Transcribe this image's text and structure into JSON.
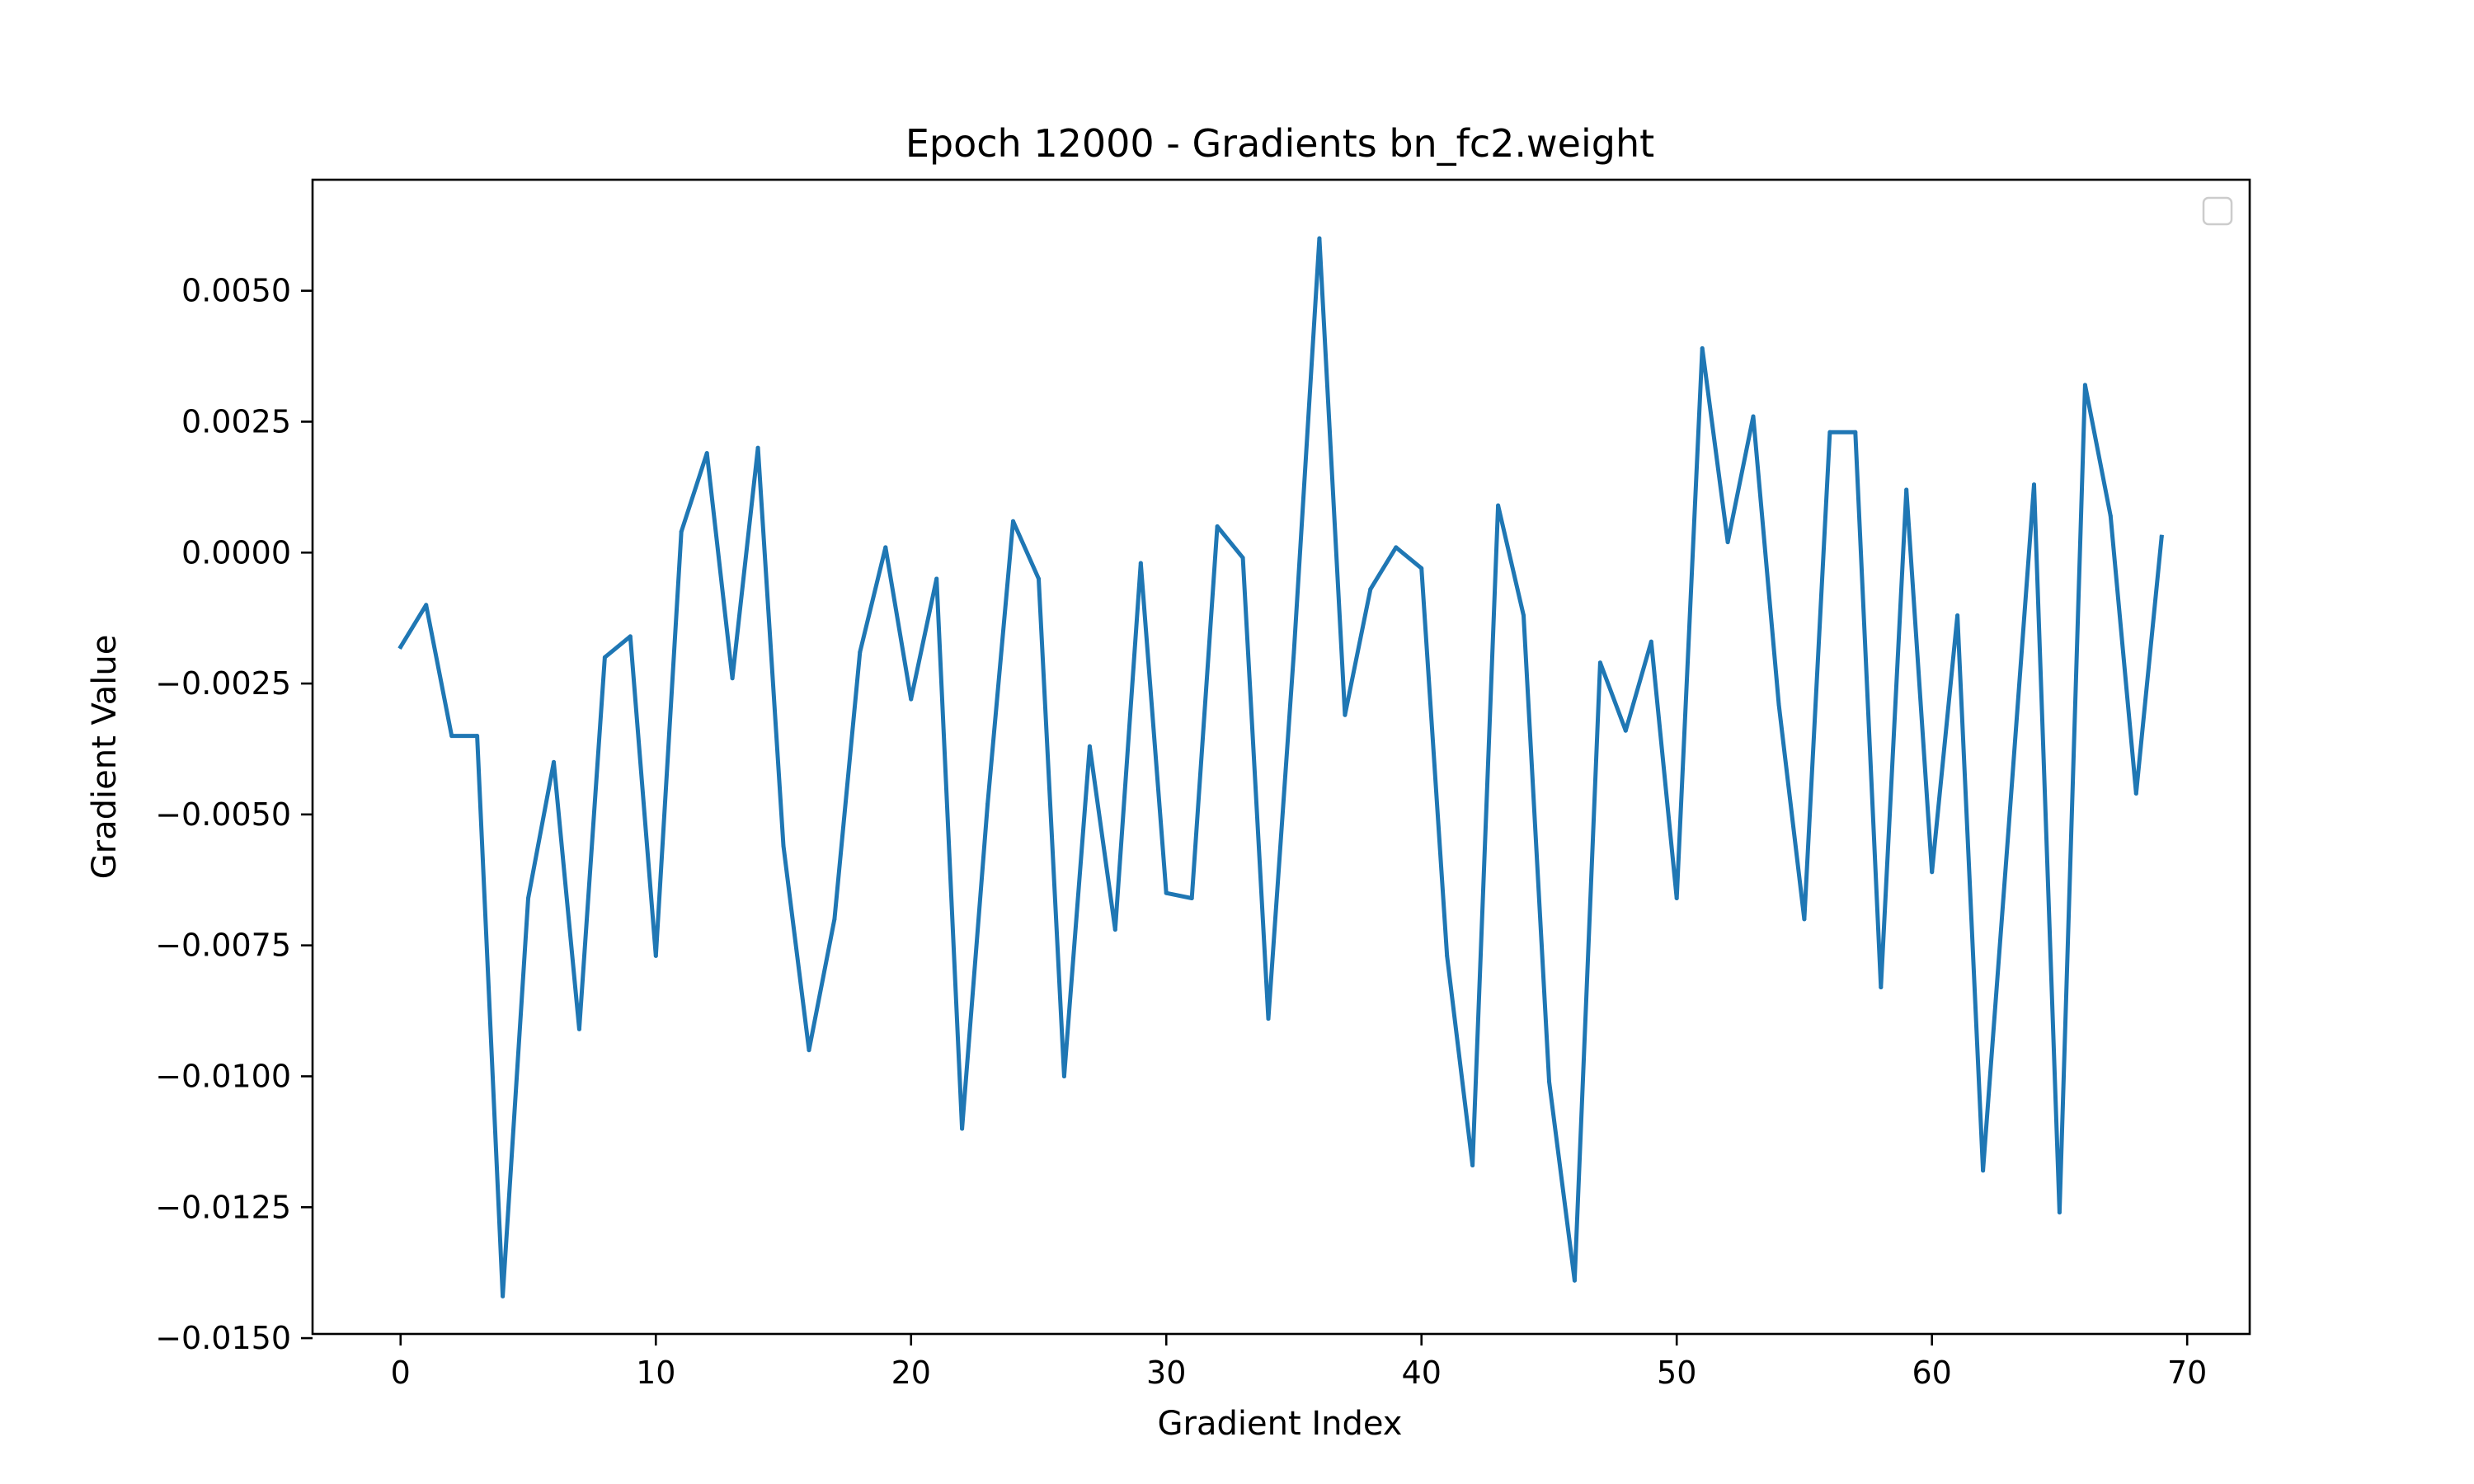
{
  "chart_data": {
    "type": "line",
    "title": "Epoch 12000 - Gradients bn_fc2.weight",
    "xlabel": "Gradient Index",
    "ylabel": "Gradient Value",
    "xlim": [
      -3.45,
      72.45
    ],
    "ylim": [
      -0.01492,
      0.00712
    ],
    "x_ticks": [
      0,
      10,
      20,
      30,
      40,
      50,
      60,
      70
    ],
    "x_tick_labels": [
      "0",
      "10",
      "20",
      "30",
      "40",
      "50",
      "60",
      "70"
    ],
    "y_ticks": [
      0.005,
      0.0025,
      0.0,
      -0.0025,
      -0.005,
      -0.0075,
      -0.01,
      -0.0125,
      -0.015
    ],
    "y_tick_labels": [
      "0.0050",
      "0.0025",
      "0.0000",
      "−0.0025",
      "−0.0050",
      "−0.0075",
      "−0.0100",
      "−0.0125",
      "−0.0150"
    ],
    "grid": false,
    "legend": {
      "placement": "top-right",
      "entries": []
    },
    "series": [
      {
        "color": "#1f77b4",
        "x": [
          0,
          1,
          2,
          3,
          4,
          5,
          6,
          7,
          8,
          9,
          10,
          11,
          12,
          13,
          14,
          15,
          16,
          17,
          18,
          19,
          20,
          21,
          22,
          23,
          24,
          25,
          26,
          27,
          28,
          29,
          30,
          31,
          32,
          33,
          34,
          35,
          36,
          37,
          38,
          39,
          40,
          41,
          42,
          43,
          44,
          45,
          46,
          47,
          48,
          49,
          50,
          51,
          52,
          53,
          54,
          55,
          56,
          57,
          58,
          59,
          60,
          61,
          62,
          63,
          64,
          65,
          66,
          67,
          68,
          69
        ],
        "values": [
          -0.0018,
          -0.001,
          -0.0035,
          -0.0035,
          -0.0142,
          -0.0066,
          -0.004,
          -0.0091,
          -0.002,
          -0.0016,
          -0.0077,
          0.0004,
          0.0019,
          -0.0024,
          0.002,
          -0.0056,
          -0.0095,
          -0.007,
          -0.0019,
          0.0001,
          -0.0028,
          -0.0005,
          -0.011,
          -0.0048,
          0.0006,
          -0.0005,
          -0.01,
          -0.0037,
          -0.0072,
          -0.0002,
          -0.0065,
          -0.0066,
          0.0005,
          -0.0001,
          -0.0089,
          -0.0019,
          0.006,
          -0.0031,
          -0.0007,
          0.0001,
          -0.0003,
          -0.0077,
          -0.0117,
          0.0009,
          -0.0012,
          -0.0101,
          -0.0139,
          -0.0021,
          -0.0034,
          -0.0017,
          -0.0066,
          0.0039,
          0.0002,
          0.0026,
          -0.0029,
          -0.007,
          0.0023,
          0.0023,
          -0.0083,
          0.0012,
          -0.0061,
          -0.0012,
          -0.0118,
          -0.0053,
          0.0013,
          -0.0126,
          0.0032,
          0.0007,
          -0.0046,
          0.0003
        ]
      }
    ]
  }
}
